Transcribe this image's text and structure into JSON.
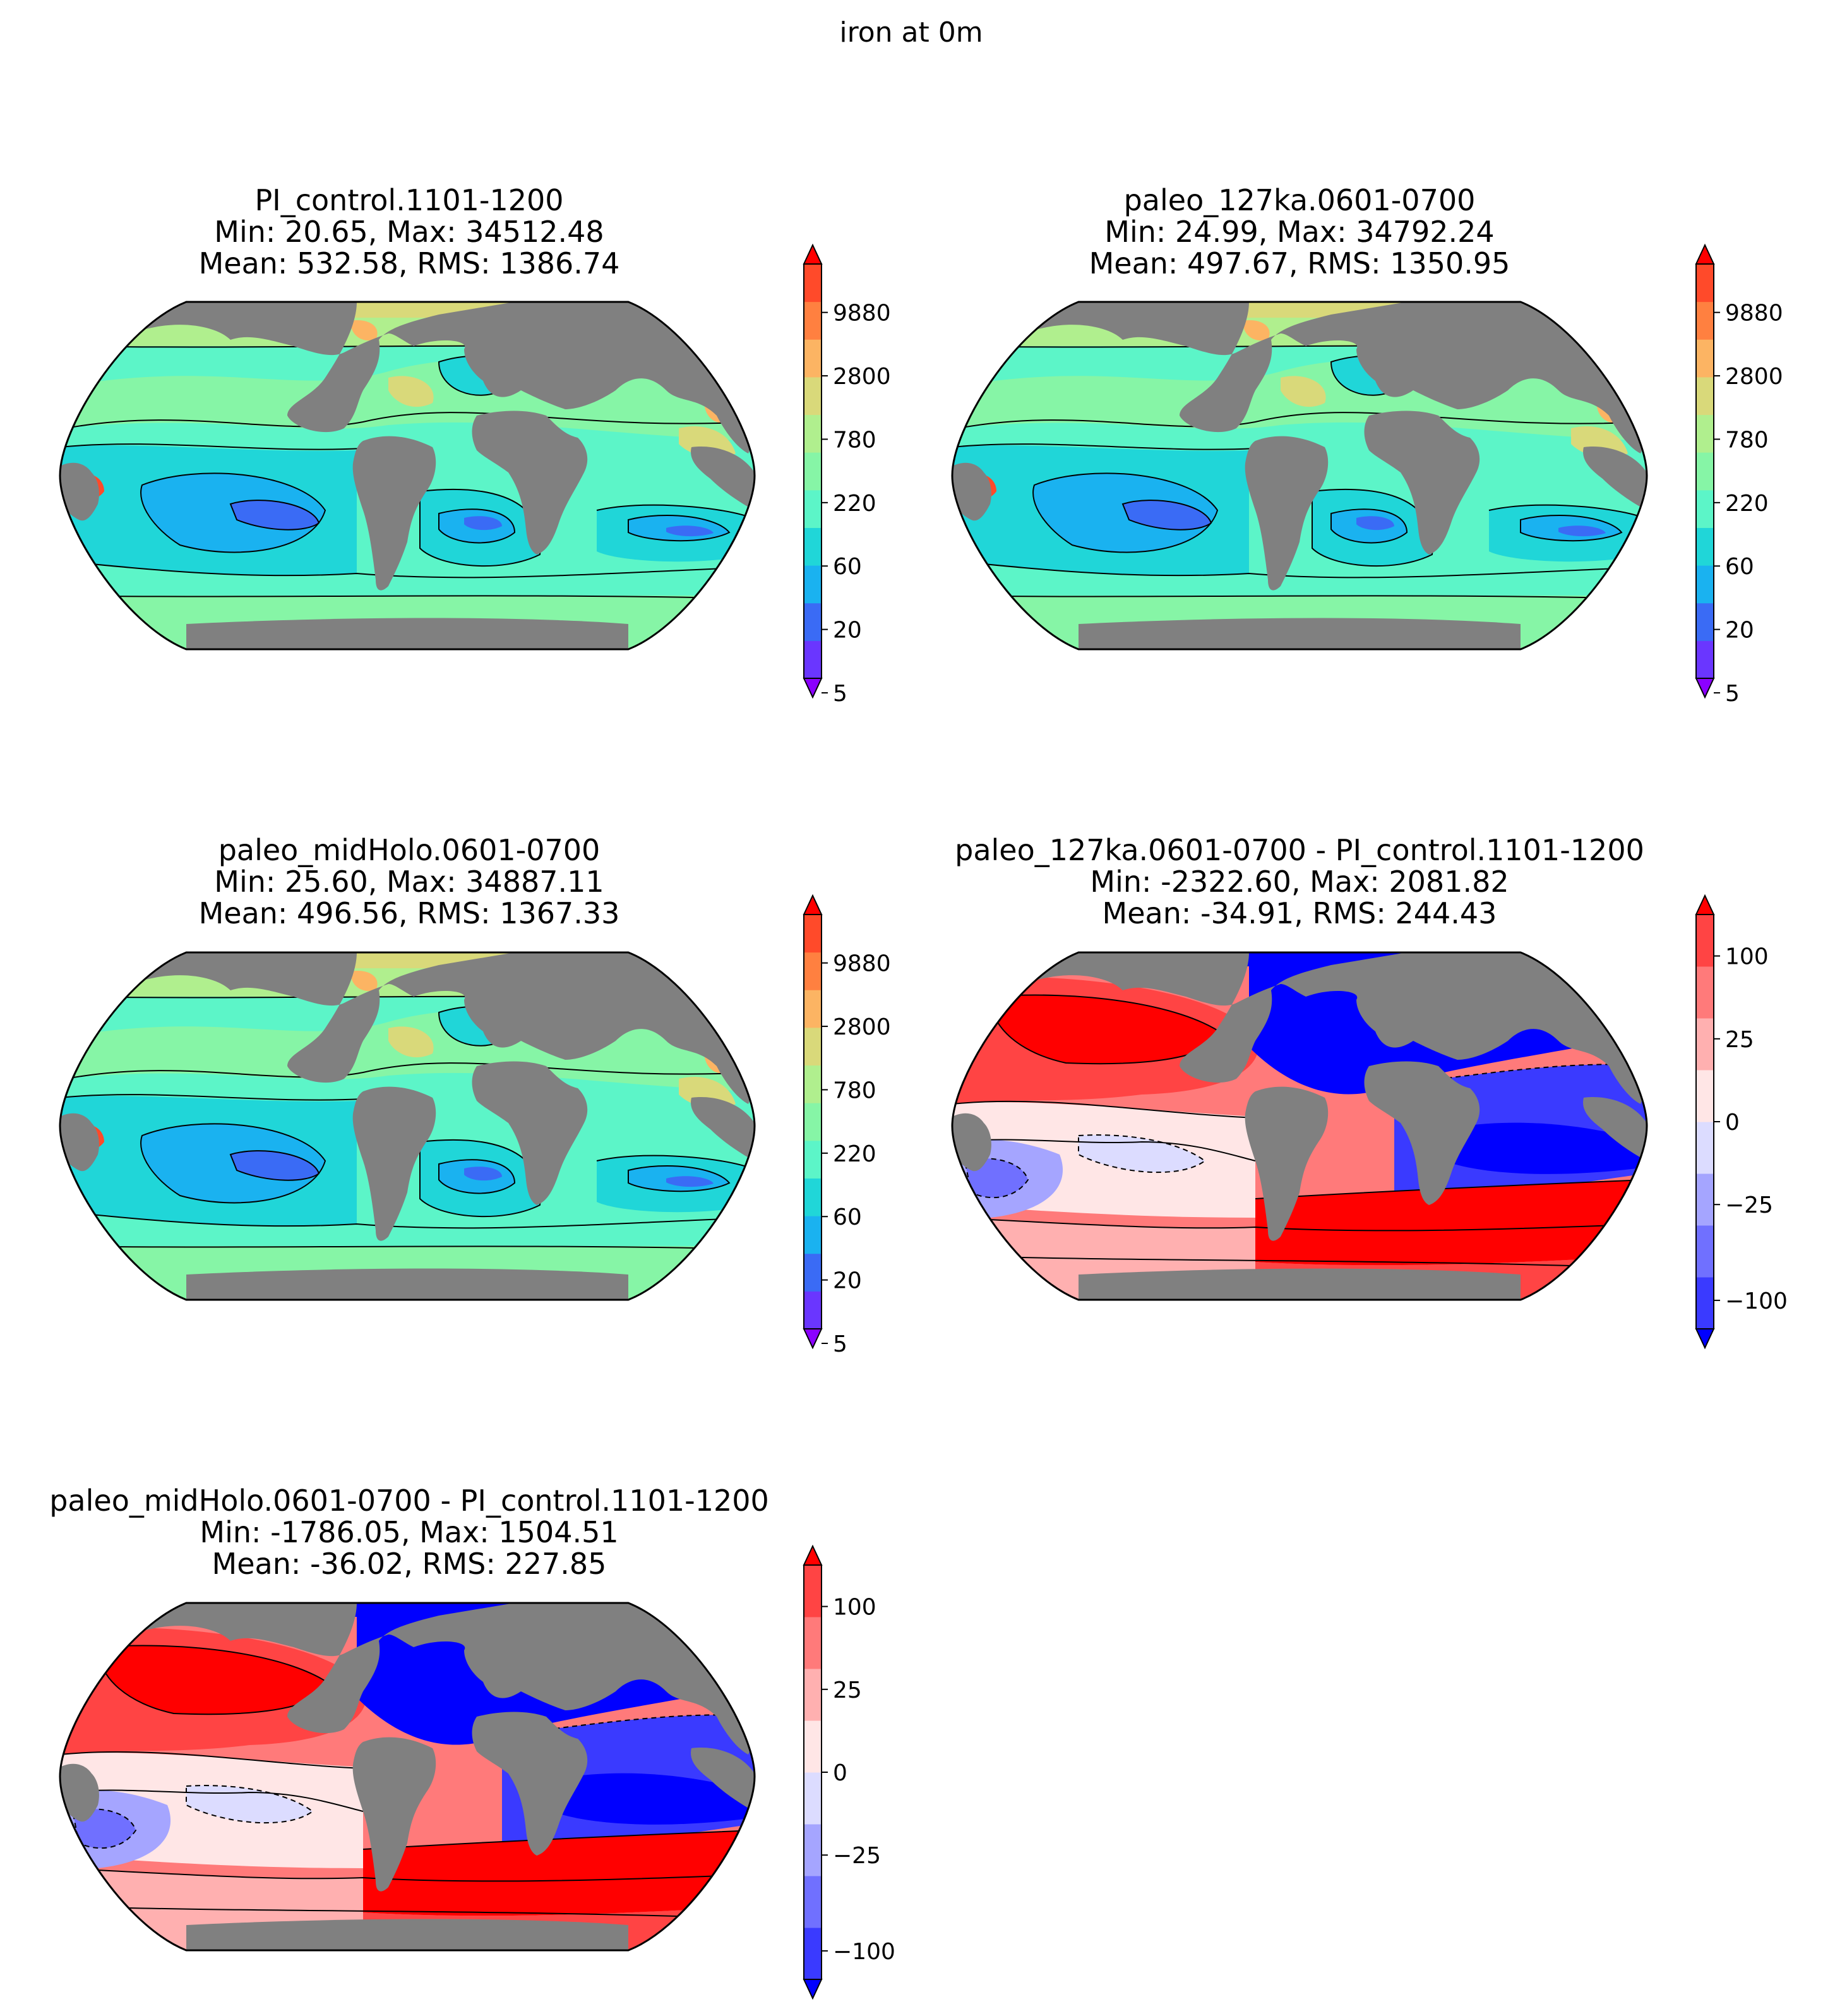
{
  "figure": {
    "suptitle": "iron at 0m"
  },
  "colors": {
    "land": "#808080",
    "abs_levels": [
      "#8b00ff",
      "#6a36ff",
      "#3a6bf5",
      "#1ab2f0",
      "#20d6d8",
      "#5cf5c8",
      "#86f5a6",
      "#b0ef8e",
      "#d9d97a",
      "#fcb463",
      "#ff8040",
      "#ff4a2a",
      "#ff0000"
    ],
    "diff_levels": [
      "#0000ff",
      "#3a3aff",
      "#7070ff",
      "#a5a5ff",
      "#dcdcff",
      "#ffe6e6",
      "#ffb0b0",
      "#ff7a7a",
      "#ff4444",
      "#ff0000"
    ]
  },
  "chart_data": [
    {
      "type": "heatmap",
      "projection": "Robinson",
      "title": "PI_control.1101-1200",
      "stats_line1": "Min: 20.65, Max: 34512.48",
      "stats_line2": "Mean: 532.58, RMS: 1386.74",
      "stats": {
        "min": 20.65,
        "max": 34512.48,
        "mean": 532.58,
        "rms": 1386.74
      },
      "colorbar": {
        "ticks": [
          "5",
          "20",
          "60",
          "220",
          "780",
          "2800",
          "9880"
        ],
        "extend": "both",
        "scale": "log"
      },
      "kind": "abs"
    },
    {
      "type": "heatmap",
      "projection": "Robinson",
      "title": "paleo_127ka.0601-0700",
      "stats_line1": "Min: 24.99, Max: 34792.24",
      "stats_line2": "Mean: 497.67, RMS: 1350.95",
      "stats": {
        "min": 24.99,
        "max": 34792.24,
        "mean": 497.67,
        "rms": 1350.95
      },
      "colorbar": {
        "ticks": [
          "5",
          "20",
          "60",
          "220",
          "780",
          "2800",
          "9880"
        ],
        "extend": "both",
        "scale": "log"
      },
      "kind": "abs"
    },
    {
      "type": "heatmap",
      "projection": "Robinson",
      "title": "paleo_midHolo.0601-0700",
      "stats_line1": "Min: 25.60, Max: 34887.11",
      "stats_line2": "Mean: 496.56, RMS: 1367.33",
      "stats": {
        "min": 25.6,
        "max": 34887.11,
        "mean": 496.56,
        "rms": 1367.33
      },
      "colorbar": {
        "ticks": [
          "5",
          "20",
          "60",
          "220",
          "780",
          "2800",
          "9880"
        ],
        "extend": "both",
        "scale": "log"
      },
      "kind": "abs"
    },
    {
      "type": "heatmap",
      "projection": "Robinson",
      "title": "paleo_127ka.0601-0700 - PI_control.1101-1200",
      "stats_line1": "Min: -2322.60, Max: 2081.82",
      "stats_line2": "Mean: -34.91, RMS: 244.43",
      "stats": {
        "min": -2322.6,
        "max": 2081.82,
        "mean": -34.91,
        "rms": 244.43
      },
      "colorbar": {
        "ticks": [
          "−100",
          "−25",
          "0",
          "25",
          "100"
        ],
        "extend": "both",
        "scale": "symlog"
      },
      "kind": "diff"
    },
    {
      "type": "heatmap",
      "projection": "Robinson",
      "title": "paleo_midHolo.0601-0700 - PI_control.1101-1200",
      "stats_line1": "Min: -1786.05, Max: 1504.51",
      "stats_line2": "Mean: -36.02, RMS: 227.85",
      "stats": {
        "min": -1786.05,
        "max": 1504.51,
        "mean": -36.02,
        "rms": 227.85
      },
      "colorbar": {
        "ticks": [
          "−100",
          "−25",
          "0",
          "25",
          "100"
        ],
        "extend": "both",
        "scale": "symlog"
      },
      "kind": "diff"
    }
  ]
}
